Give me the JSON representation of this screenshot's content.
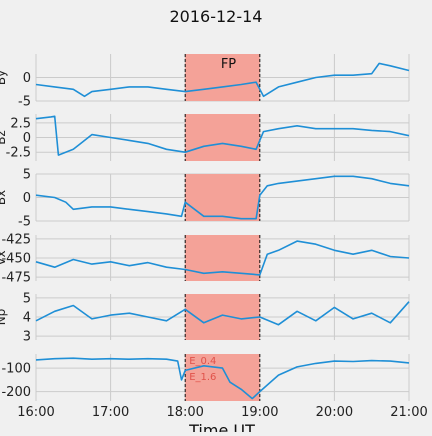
{
  "chart_data": {
    "type": "line",
    "title": "2016-12-14",
    "xlabel": "Time UT",
    "xlim": [
      "16:00",
      "21:00"
    ],
    "x_ticks": [
      "16:00",
      "17:00",
      "18:00",
      "19:00",
      "20:00",
      "21:00"
    ],
    "grid": true,
    "line_color": "#1f8fd6",
    "shaded_region": {
      "start": "18:00",
      "end": "19:00",
      "label": "FP",
      "color": "#f4a298"
    },
    "region_annotations": [
      "E_0.4",
      "E_1.6"
    ],
    "panels": [
      {
        "ylabel": "By",
        "ylim": [
          -5,
          5
        ],
        "yticks": [
          -5,
          0
        ],
        "series": {
          "name": "",
          "x_hours": [
            16,
            16.25,
            16.5,
            16.65,
            16.75,
            17,
            17.25,
            17.5,
            17.75,
            18,
            18.25,
            18.5,
            18.75,
            18.95,
            19.05,
            19.25,
            19.5,
            19.75,
            20,
            20.25,
            20.5,
            20.6,
            20.75,
            21
          ],
          "values": [
            -1.5,
            -2.0,
            -2.5,
            -4.0,
            -3.0,
            -2.5,
            -2.0,
            -2.0,
            -2.5,
            -3.0,
            -2.5,
            -2.0,
            -1.5,
            -1.0,
            -4.0,
            -2.0,
            -1.0,
            0.0,
            0.5,
            0.5,
            0.8,
            3.0,
            2.5,
            1.5
          ]
        }
      },
      {
        "ylabel": "Bz",
        "ylim": [
          -4,
          4
        ],
        "yticks": [
          -2.5,
          0.0,
          2.5
        ],
        "series": {
          "name": "",
          "x_hours": [
            16,
            16.2,
            16.25,
            16.3,
            16.5,
            16.6,
            16.75,
            17,
            17.25,
            17.5,
            17.75,
            18,
            18.25,
            18.5,
            18.75,
            18.95,
            19.05,
            19.25,
            19.5,
            19.75,
            20,
            20.25,
            20.5,
            20.75,
            21
          ],
          "values": [
            3.2,
            3.5,
            3.6,
            -3.0,
            -2.0,
            -1.0,
            0.5,
            0.0,
            -0.5,
            -1.0,
            -2.0,
            -2.5,
            -1.5,
            -1.0,
            -1.5,
            -2.0,
            1.0,
            1.5,
            2.0,
            1.5,
            1.5,
            1.5,
            1.2,
            1.0,
            0.3
          ]
        }
      },
      {
        "ylabel": "Bx",
        "ylim": [
          -5,
          5
        ],
        "yticks": [
          -5,
          0,
          5
        ],
        "series": {
          "name": "",
          "x_hours": [
            16,
            16.25,
            16.4,
            16.5,
            16.75,
            17,
            17.25,
            17.5,
            17.75,
            17.95,
            18,
            18.25,
            18.5,
            18.75,
            18.95,
            19,
            19.1,
            19.25,
            19.5,
            19.75,
            20,
            20.25,
            20.5,
            20.75,
            21
          ],
          "values": [
            0.5,
            0.0,
            -1.0,
            -2.5,
            -2.0,
            -2.0,
            -2.5,
            -3.0,
            -3.5,
            -4.0,
            -1.0,
            -4.0,
            -4.0,
            -4.5,
            -4.5,
            0.5,
            2.5,
            3.0,
            3.5,
            4.0,
            4.5,
            4.5,
            4.0,
            3.0,
            2.5
          ]
        }
      },
      {
        "ylabel": "Vx",
        "ylim": [
          -480,
          -420
        ],
        "yticks": [
          -425,
          -450,
          -475
        ],
        "series": {
          "name": "",
          "x_hours": [
            16,
            16.25,
            16.5,
            16.75,
            17,
            17.25,
            17.5,
            17.75,
            18,
            18.25,
            18.5,
            18.75,
            19,
            19.1,
            19.25,
            19.5,
            19.75,
            20,
            20.25,
            20.5,
            20.75,
            21
          ],
          "values": [
            -455,
            -462,
            -452,
            -458,
            -455,
            -460,
            -456,
            -462,
            -465,
            -470,
            -468,
            -470,
            -472,
            -445,
            -440,
            -428,
            -432,
            -440,
            -445,
            -440,
            -448,
            -450
          ]
        }
      },
      {
        "ylabel": "Np",
        "ylim": [
          2.8,
          5.2
        ],
        "yticks": [
          3,
          4,
          5
        ],
        "series": {
          "name": "",
          "x_hours": [
            16,
            16.25,
            16.5,
            16.75,
            17,
            17.25,
            17.5,
            17.75,
            18,
            18.25,
            18.5,
            18.75,
            19,
            19.25,
            19.5,
            19.75,
            20,
            20.25,
            20.5,
            20.75,
            21
          ],
          "values": [
            3.8,
            4.3,
            4.6,
            3.9,
            4.1,
            4.2,
            4.0,
            3.8,
            4.4,
            3.7,
            4.1,
            3.9,
            4.0,
            3.6,
            4.3,
            3.8,
            4.5,
            3.9,
            4.2,
            3.7,
            4.8
          ]
        }
      },
      {
        "ylabel": "",
        "ylim": [
          -240,
          -40
        ],
        "yticks": [
          -100,
          -200
        ],
        "series": {
          "name": "",
          "x_hours": [
            16,
            16.25,
            16.5,
            16.75,
            17,
            17.25,
            17.5,
            17.75,
            17.9,
            17.95,
            18,
            18.25,
            18.5,
            18.6,
            18.75,
            18.9,
            19,
            19.25,
            19.5,
            19.75,
            20,
            20.25,
            20.5,
            20.75,
            21
          ],
          "values": [
            -65,
            -60,
            -58,
            -62,
            -60,
            -62,
            -60,
            -62,
            -70,
            -150,
            -110,
            -90,
            -100,
            -160,
            -190,
            -230,
            -200,
            -130,
            -95,
            -80,
            -70,
            -72,
            -68,
            -70,
            -78
          ]
        }
      }
    ]
  }
}
